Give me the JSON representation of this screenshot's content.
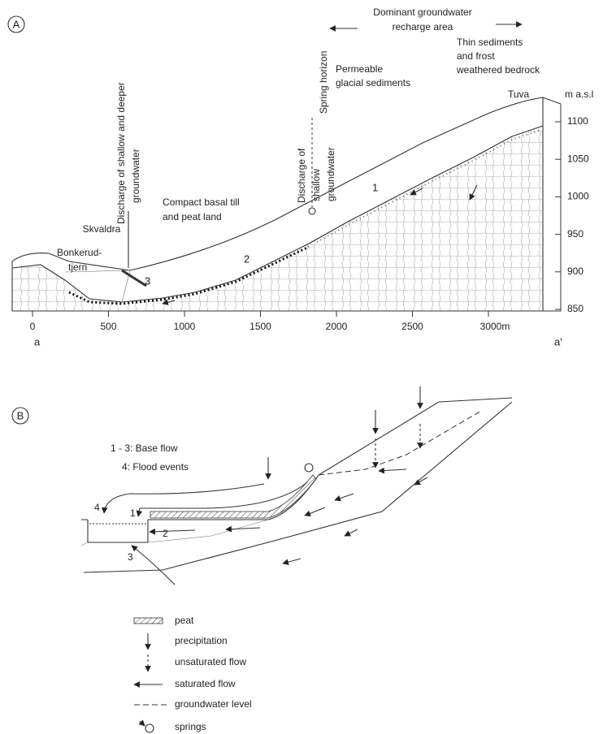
{
  "panel_a": {
    "label": "A",
    "recharge_note": [
      "Dominant groundwater",
      "recharge area"
    ],
    "bedrock_note": [
      "Thin sediments",
      "and frost",
      "weathered bedrock"
    ],
    "glacial_note": [
      "Permeable",
      "glacial sediments"
    ],
    "till_note": [
      "Compact basal till",
      "and peat land"
    ],
    "deep_discharge_note": [
      "Discharge of shallow and deeper",
      "groundwater"
    ],
    "shallow_discharge_note": [
      "Discharge of",
      "shallow",
      "groundwater"
    ],
    "spring_note": "Spring horizon",
    "places": {
      "skvaldra": "Skvaldra",
      "lake": [
        "Bonkerud-",
        "tjern"
      ],
      "summit": "Tuva"
    },
    "zones": [
      "1",
      "2",
      "3"
    ],
    "elevation_unit": "m a.s.l",
    "elevation_ticks": [
      "1100",
      "1050",
      "1000",
      "950",
      "900",
      "850"
    ],
    "distance_ticks": [
      "0",
      "500",
      "1000",
      "1500",
      "2000",
      "2500",
      "3000m"
    ],
    "profile_ends": [
      "a",
      "a'"
    ]
  },
  "panel_b": {
    "label": "B",
    "key": [
      "1 - 3: Base flow",
      "4: Flood events"
    ],
    "flow_numbers": [
      "1",
      "2",
      "3",
      "4"
    ],
    "legend": [
      "peat",
      "precipitation",
      "unsaturated flow",
      "saturated flow",
      "groundwater level",
      "springs"
    ]
  }
}
